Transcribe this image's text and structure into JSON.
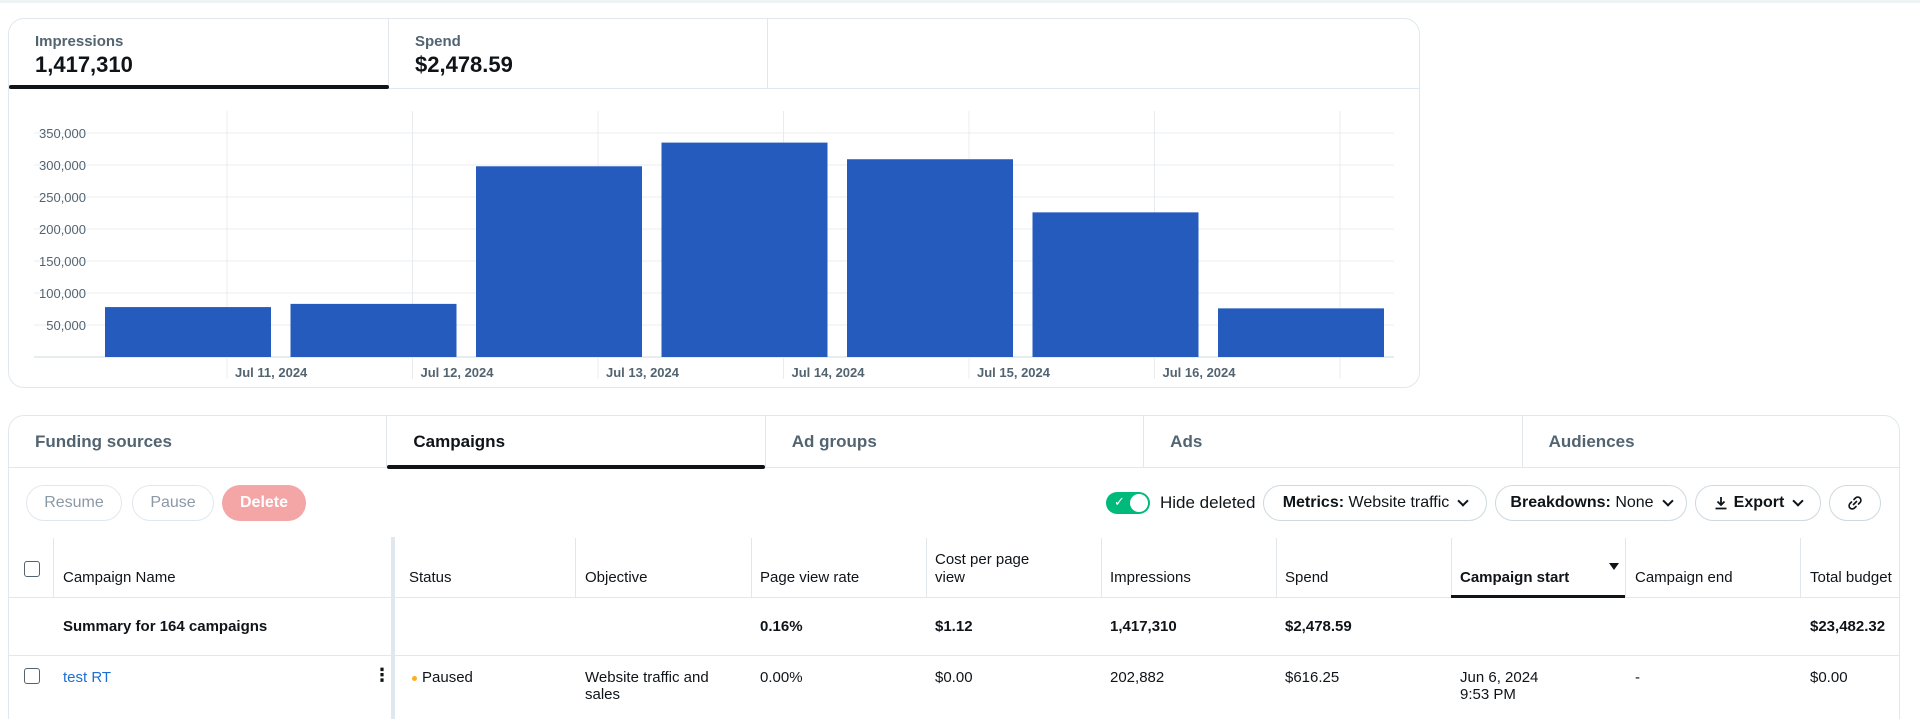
{
  "metrics": [
    {
      "label": "Impressions",
      "value": "1,417,310"
    },
    {
      "label": "Spend",
      "value": "$2,478.59"
    }
  ],
  "chart_data": {
    "type": "bar",
    "title": "",
    "xlabel": "",
    "ylabel": "",
    "ylim": [
      0,
      370000
    ],
    "yticks": [
      50000,
      100000,
      150000,
      200000,
      250000,
      300000,
      350000
    ],
    "ytick_labels": [
      "50,000",
      "100,000",
      "150,000",
      "200,000",
      "250,000",
      "300,000",
      "350,000"
    ],
    "xtick_labels": [
      "Jul 11, 2024",
      "Jul 12, 2024",
      "Jul 13, 2024",
      "Jul 14, 2024",
      "Jul 15, 2024",
      "Jul 16, 2024"
    ],
    "values": [
      78000,
      83000,
      298000,
      335000,
      309000,
      226000,
      76000
    ],
    "color": "#255bbd",
    "grid": true
  },
  "tabs": [
    "Funding sources",
    "Campaigns",
    "Ad groups",
    "Ads",
    "Audiences"
  ],
  "toolbar": {
    "resume": "Resume",
    "pause": "Pause",
    "delete": "Delete",
    "hide_deleted": "Hide deleted",
    "metrics_key": "Metrics:",
    "metrics_val": "Website traffic",
    "breakdowns_key": "Breakdowns:",
    "breakdowns_val": "None",
    "export": "Export"
  },
  "table": {
    "headers": {
      "name": "Campaign Name",
      "status": "Status",
      "objective": "Objective",
      "pvr": "Page view rate",
      "cppv_1": "Cost per page",
      "cppv_2": "view",
      "impr": "Impressions",
      "spend": "Spend",
      "start": "Campaign start",
      "end": "Campaign end",
      "budget": "Total budget"
    },
    "summary": {
      "name": "Summary for 164 campaigns",
      "pvr": "0.16%",
      "cppv": "$1.12",
      "impr": "1,417,310",
      "spend": "$2,478.59",
      "budget": "$23,482.32"
    },
    "row": {
      "name": "test RT",
      "status": "Paused",
      "objective_1": "Website traffic and",
      "objective_2": "sales",
      "pvr": "0.00%",
      "cppv": "$0.00",
      "impr": "202,882",
      "spend": "$616.25",
      "start_1": "Jun 6, 2024",
      "start_2": "9:53 PM",
      "end": "-",
      "budget": "$0.00"
    }
  },
  "colors": {
    "accent": "#255bbd",
    "toggle_on": "#00ba7c",
    "delete_bg": "#f4a5a5",
    "link": "#1d6fd1",
    "paused": "#ffad1f"
  }
}
